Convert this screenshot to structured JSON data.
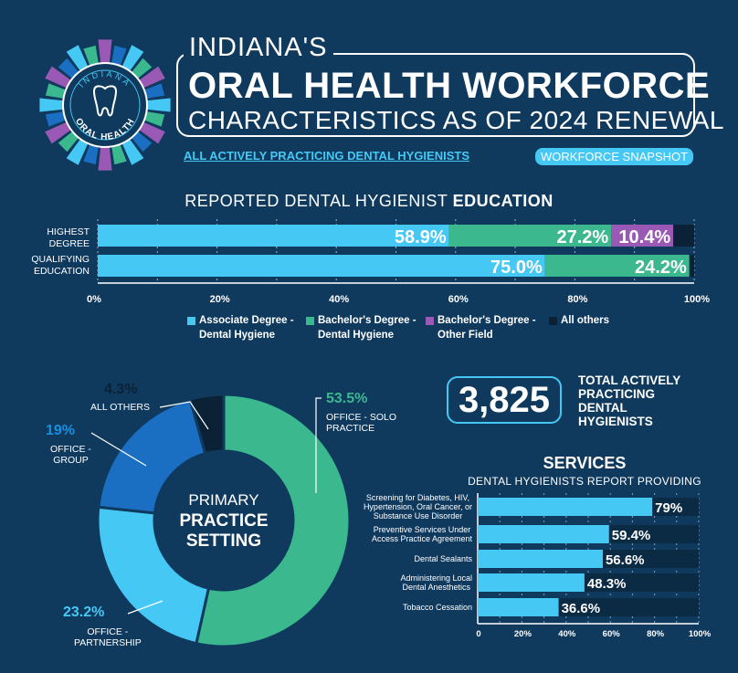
{
  "header": {
    "title_line1": "INDIANA'S",
    "title_line2": "ORAL HEALTH WORKFORCE",
    "title_line3": "CHARACTERISTICS AS OF 2024 RENEWAL",
    "subtitle_link": "ALL ACTIVELY PRACTICING DENTAL HYGIENISTS",
    "snapshot_badge": "WORKFORCE SNAPSHOT"
  },
  "logo": {
    "top_text": "INDIANA",
    "bottom_text": "ORAL HEALTH",
    "icon": "tooth-icon"
  },
  "colors": {
    "background": "#0f3a5e",
    "associate": "#46c8f5",
    "bachelor_dh": "#3bb88e",
    "bachelor_other": "#9b59b6",
    "all_others": "#0b2236",
    "group": "#1a6fc2",
    "track": "#0b2a44"
  },
  "education": {
    "title_plain": "REPORTED DENTAL HYGIENIST ",
    "title_bold": "EDUCATION",
    "row_labels": [
      "HIGHEST\nDEGREE",
      "QUALIFYING\nEDUCATION"
    ],
    "ticks": [
      "0%",
      "20%",
      "40%",
      "60%",
      "80%",
      "100%"
    ],
    "legend": [
      {
        "label": "Associate Degree -\nDental  Hygiene",
        "color": "#46c8f5"
      },
      {
        "label": "Bachelor's Degree -\nDental Hygiene",
        "color": "#3bb88e"
      },
      {
        "label": "Bachelor's Degree -\nOther Field",
        "color": "#9b59b6"
      },
      {
        "label": "All others",
        "color": "#0b2236"
      }
    ]
  },
  "chart_data": [
    {
      "type": "bar",
      "orientation": "horizontal-stacked",
      "title": "REPORTED DENTAL HYGIENIST EDUCATION",
      "categories": [
        "HIGHEST DEGREE",
        "QUALIFYING EDUCATION"
      ],
      "series": [
        {
          "name": "Associate Degree - Dental Hygiene",
          "values": [
            58.9,
            75.0
          ],
          "labels": [
            "58.9%",
            "75.0%"
          ]
        },
        {
          "name": "Bachelor's Degree - Dental Hygiene",
          "values": [
            27.2,
            24.2
          ],
          "labels": [
            "27.2%",
            "24.2%"
          ]
        },
        {
          "name": "Bachelor's Degree - Other Field",
          "values": [
            10.4,
            0
          ],
          "labels": [
            "10.4%",
            ""
          ]
        },
        {
          "name": "All others",
          "values": [
            3.5,
            0.8
          ],
          "labels": [
            "",
            ""
          ]
        }
      ],
      "xlim": [
        0,
        100
      ],
      "grid": true,
      "legend": "bottom"
    },
    {
      "type": "pie",
      "style": "donut",
      "center_text_top": "PRIMARY",
      "center_text_bold": "PRACTICE\nSETTING",
      "slices": [
        {
          "name": "OFFICE - SOLO\nPRACTICE",
          "value": 53.5,
          "label": "53.5%",
          "color": "#3bb88e"
        },
        {
          "name": "OFFICE -\nPARTNERSHIP",
          "value": 23.2,
          "label": "23.2%",
          "color": "#46c8f5"
        },
        {
          "name": "OFFICE -\nGROUP",
          "value": 19,
          "label": "19%",
          "color": "#1a6fc2"
        },
        {
          "name": "ALL OTHERS",
          "value": 4.3,
          "label": "4.3%",
          "color": "#0b2236"
        }
      ]
    },
    {
      "type": "bar",
      "orientation": "horizontal",
      "title": "SERVICES",
      "subtitle": "DENTAL HYGIENISTS REPORT PROVIDING",
      "categories": [
        "Screening for Diabetes, HIV,\nHypertension, Oral Cancer, or\nSubstance Use Disorder",
        "Preventive Services Under\nAccess Practice Agreement",
        "Dental Sealants",
        "Administering Local\nDental Anesthetics",
        "Tobacco Cessation"
      ],
      "values": [
        79,
        59.4,
        56.6,
        48.3,
        36.6
      ],
      "labels": [
        "79%",
        "59.4%",
        "56.6%",
        "48.3%",
        "36.6%"
      ],
      "ticks": [
        "0",
        "20%",
        "40%",
        "60%",
        "80%",
        "100%"
      ],
      "xlim": [
        0,
        100
      ],
      "grid": true
    }
  ],
  "total": {
    "value": "3,825",
    "label": "TOTAL ACTIVELY\nPRACTICING\nDENTAL\nHYGIENISTS"
  }
}
